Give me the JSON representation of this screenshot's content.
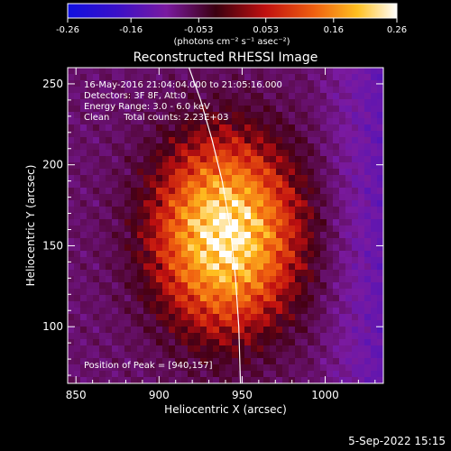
{
  "colorbar": {
    "ticks": [
      "-0.26",
      "-0.16",
      "-0.053",
      "0.053",
      "0.16",
      "0.26"
    ],
    "tick_values": [
      -0.26,
      -0.16,
      -0.053,
      0.053,
      0.16,
      0.26
    ],
    "range": [
      -0.26,
      0.26
    ],
    "unit_label": "(photons cm⁻² s⁻¹ asec⁻²)",
    "colormap": "rainbow-to-hot (blue, purple, red, orange, yellow, white)"
  },
  "chart_data": {
    "type": "heatmap",
    "title": "Reconstructed RHESSI Image",
    "xlabel": "Heliocentric X (arcsec)",
    "ylabel": "Heliocentric Y (arcsec)",
    "xlim": [
      845,
      1035
    ],
    "ylim": [
      65,
      260
    ],
    "xticks": [
      850,
      900,
      950,
      1000
    ],
    "yticks": [
      100,
      150,
      200,
      250
    ],
    "info_lines": [
      "16-May-2016 21:04:04.000 to 21:05:16.000",
      "Detectors: 3F 8F, Att:0",
      "Energy Range: 3.0 - 6.0 keV",
      "Clean     Total counts: 2.23E+03"
    ],
    "peak_label": "Position of Peak = [940,157]",
    "peak": [
      940,
      157
    ],
    "limb_curve": [
      [
        917,
        263
      ],
      [
        925,
        240
      ],
      [
        932,
        215
      ],
      [
        938,
        190
      ],
      [
        943,
        160
      ],
      [
        946,
        130
      ],
      [
        948,
        100
      ],
      [
        949,
        65
      ]
    ]
  },
  "footer": {
    "timestamp": "5-Sep-2022 15:15"
  }
}
